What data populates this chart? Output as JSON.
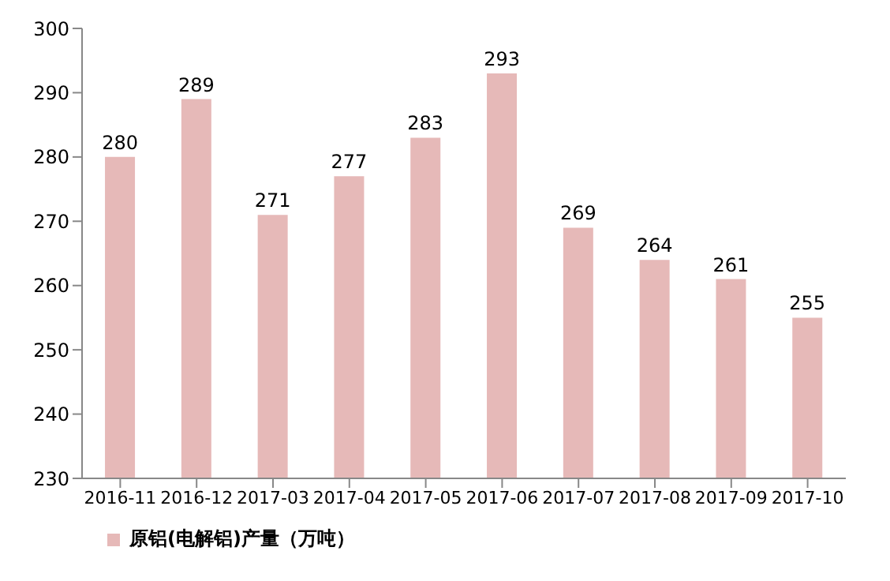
{
  "chart_data": {
    "type": "bar",
    "categories": [
      "2016-11",
      "2016-12",
      "2017-03",
      "2017-04",
      "2017-05",
      "2017-06",
      "2017-07",
      "2017-08",
      "2017-09",
      "2017-10"
    ],
    "series": [
      {
        "name": "原铝(电解铝)产量（万吨）",
        "color": "#e6b9b8",
        "values": [
          280,
          289,
          271,
          277,
          283,
          293,
          269,
          264,
          261,
          255
        ]
      }
    ],
    "ylim": [
      230,
      300
    ],
    "yticks": [
      230,
      240,
      250,
      260,
      270,
      280,
      290,
      300
    ],
    "data_labels": true,
    "legend": "bottom left",
    "grid": false
  }
}
